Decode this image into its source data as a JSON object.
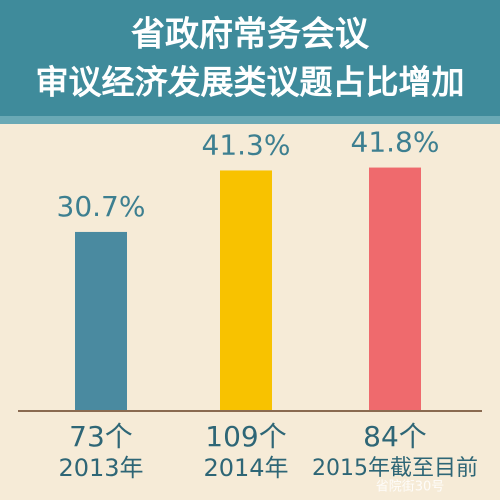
{
  "chart_data": {
    "type": "bar",
    "title": "省政府常务会议",
    "subtitle": "审议经济发展类议题占比增加",
    "categories": [
      "2013年",
      "2014年",
      "2015年截至目前"
    ],
    "counts": [
      "73个",
      "109个",
      "84个"
    ],
    "values": [
      30.7,
      41.3,
      41.8
    ],
    "value_labels": [
      "30.7%",
      "41.3%",
      "41.8%"
    ],
    "colors": [
      "#4a8aa0",
      "#f8c200",
      "#ef6a6d"
    ],
    "watermark": "省院街30号"
  }
}
